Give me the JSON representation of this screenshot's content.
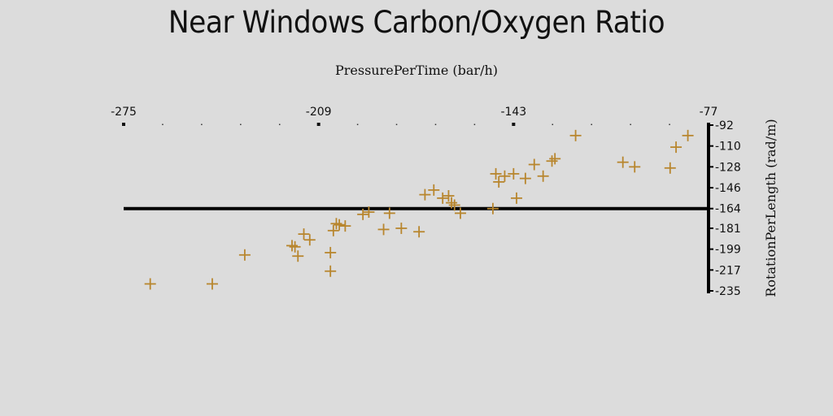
{
  "chart_data": {
    "type": "scatter",
    "title": "Near Windows Carbon/Oxygen Ratio",
    "xlabel": "PressurePerTime (bar/h)",
    "ylabel": "RotationPerLength (rad/m)",
    "xlim": [
      -275,
      -77
    ],
    "ylim": [
      -235,
      -92
    ],
    "x_axis_position": "top",
    "y_axis_position": "right",
    "grid": false,
    "reference_line_y": -164,
    "x_ticks": [
      -275,
      -209,
      -143,
      -77
    ],
    "y_ticks": [
      -92,
      -110,
      -128,
      -146,
      -164,
      -181,
      -199,
      -217,
      -235
    ],
    "marker": "plus",
    "marker_color": "#b8862e",
    "points": [
      {
        "x": -266,
        "y": -229
      },
      {
        "x": -245,
        "y": -229
      },
      {
        "x": -234,
        "y": -204
      },
      {
        "x": -218,
        "y": -196
      },
      {
        "x": -217,
        "y": -197
      },
      {
        "x": -216,
        "y": -205
      },
      {
        "x": -214,
        "y": -186
      },
      {
        "x": -212,
        "y": -191
      },
      {
        "x": -205,
        "y": -202
      },
      {
        "x": -205,
        "y": -218
      },
      {
        "x": -204,
        "y": -183
      },
      {
        "x": -203,
        "y": -177
      },
      {
        "x": -202,
        "y": -178
      },
      {
        "x": -200,
        "y": -179
      },
      {
        "x": -194,
        "y": -169
      },
      {
        "x": -192,
        "y": -167
      },
      {
        "x": -187,
        "y": -182
      },
      {
        "x": -185,
        "y": -168
      },
      {
        "x": -181,
        "y": -181
      },
      {
        "x": -175,
        "y": -184
      },
      {
        "x": -173,
        "y": -152
      },
      {
        "x": -170,
        "y": -148
      },
      {
        "x": -167,
        "y": -155
      },
      {
        "x": -165,
        "y": -153
      },
      {
        "x": -164,
        "y": -159
      },
      {
        "x": -163,
        "y": -161
      },
      {
        "x": -161,
        "y": -168
      },
      {
        "x": -150,
        "y": -164
      },
      {
        "x": -149,
        "y": -134
      },
      {
        "x": -148,
        "y": -141
      },
      {
        "x": -146,
        "y": -136
      },
      {
        "x": -143,
        "y": -134
      },
      {
        "x": -142,
        "y": -155
      },
      {
        "x": -139,
        "y": -138
      },
      {
        "x": -136,
        "y": -126
      },
      {
        "x": -133,
        "y": -136
      },
      {
        "x": -130,
        "y": -123
      },
      {
        "x": -129,
        "y": -121
      },
      {
        "x": -122,
        "y": -101
      },
      {
        "x": -106,
        "y": -124
      },
      {
        "x": -102,
        "y": -128
      },
      {
        "x": -90,
        "y": -129
      },
      {
        "x": -88,
        "y": -111
      },
      {
        "x": -84,
        "y": -101
      }
    ]
  }
}
